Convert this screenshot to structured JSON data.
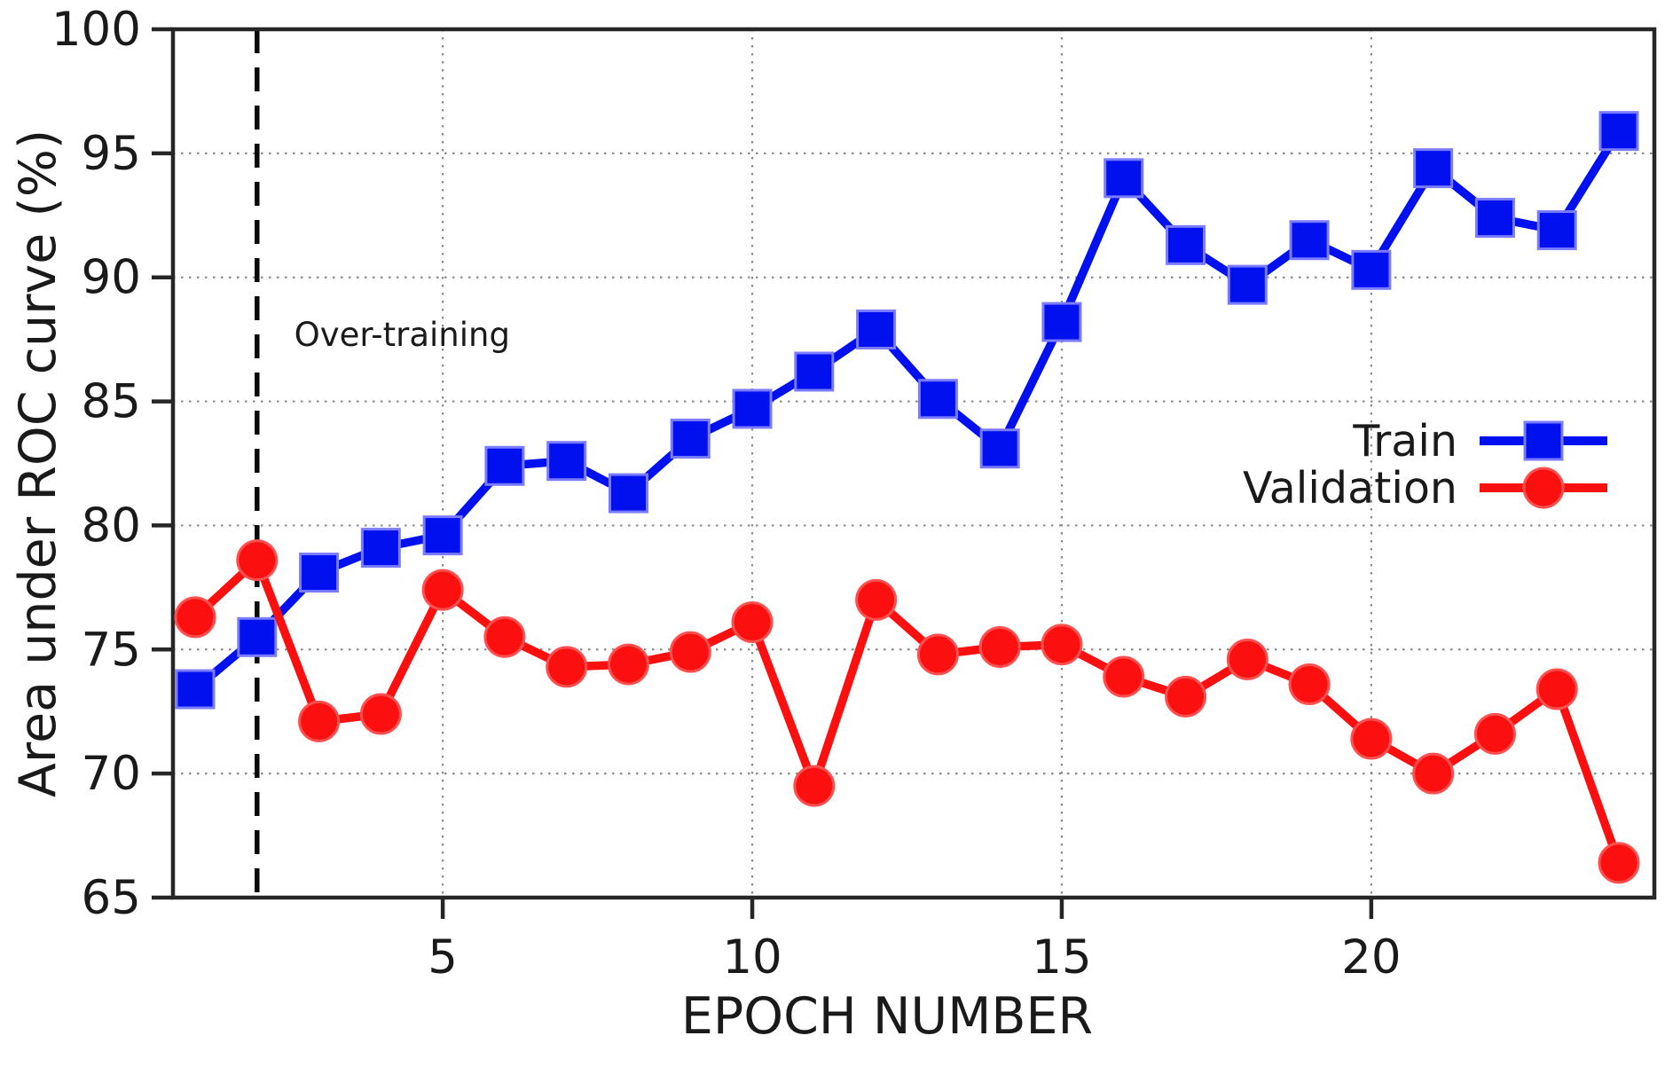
{
  "chart_data": {
    "type": "line",
    "title": "",
    "xlabel": "EPOCH NUMBER",
    "ylabel": "Area under ROC curve (%)",
    "x": [
      1,
      2,
      3,
      4,
      5,
      6,
      7,
      8,
      9,
      10,
      11,
      12,
      13,
      14,
      15,
      16,
      17,
      18,
      19,
      20,
      21,
      22,
      23,
      24
    ],
    "series": [
      {
        "name": "Train",
        "marker": "square",
        "color": "#0010ee",
        "edge_color": "#7b7bff",
        "values": [
          73.4,
          75.5,
          78.1,
          79.1,
          79.6,
          82.4,
          82.6,
          81.3,
          83.5,
          84.7,
          86.2,
          87.9,
          85.1,
          83.1,
          88.2,
          94.0,
          91.3,
          89.7,
          91.5,
          90.3,
          94.4,
          92.4,
          91.9,
          95.9
        ]
      },
      {
        "name": "Validation",
        "marker": "circle",
        "color": "#fb0f0f",
        "edge_color": "#ff5050",
        "values": [
          76.3,
          78.6,
          72.1,
          72.4,
          77.4,
          75.5,
          74.3,
          74.4,
          74.9,
          76.1,
          69.5,
          77.0,
          74.8,
          75.1,
          75.2,
          73.9,
          73.1,
          74.6,
          73.6,
          71.4,
          70.0,
          71.6,
          73.4,
          66.4
        ]
      }
    ],
    "ylim": [
      65,
      100
    ],
    "xlim_epochs": [
      0.64,
      24.57
    ],
    "yticks": [
      65,
      70,
      75,
      80,
      85,
      90,
      95,
      100
    ],
    "xticks": [
      5,
      10,
      15,
      20
    ],
    "grid": true,
    "grid_color": "#8c8c8c",
    "spine_color": "#262626",
    "legend_position": "right-middle",
    "annotation": {
      "text": "Over-training",
      "at_epoch": 2.6,
      "at_value": 87.7
    },
    "overtrain_line_epoch": 2,
    "overtrain_line_style": "dashed-black"
  }
}
